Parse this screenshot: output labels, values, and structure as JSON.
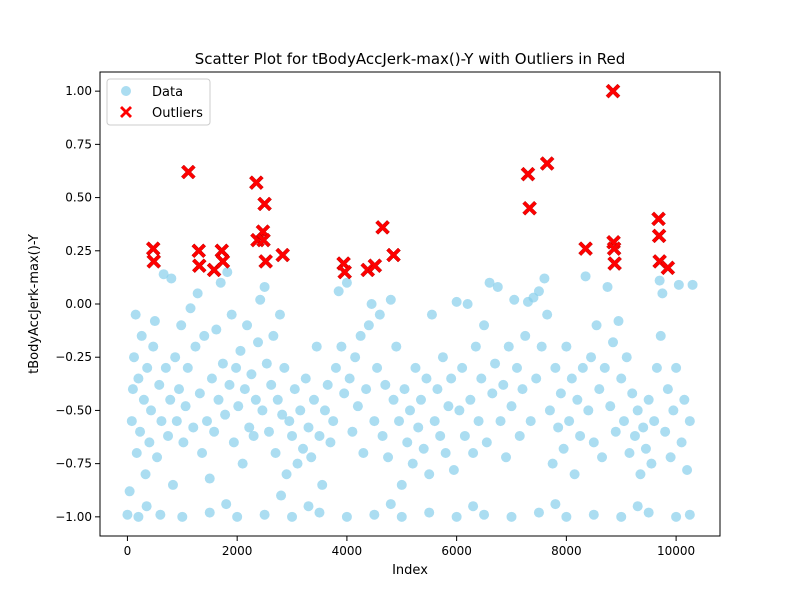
{
  "chart_data": {
    "type": "scatter",
    "title": "Scatter Plot for tBodyAccJerk-max()-Y with Outliers in Red",
    "xlabel": "Index",
    "ylabel": "tBodyAccJerk-max()-Y",
    "xlim": [
      -500,
      10800
    ],
    "ylim": [
      -1.09,
      1.09
    ],
    "x_ticks": [
      0,
      2000,
      4000,
      6000,
      8000,
      10000
    ],
    "y_ticks": [
      -1.0,
      -0.75,
      -0.5,
      -0.25,
      0.0,
      0.25,
      0.5,
      0.75,
      1.0
    ],
    "x_tick_labels": [
      "0",
      "2000",
      "4000",
      "6000",
      "8000",
      "10000"
    ],
    "y_tick_labels": [
      "−1.00",
      "−0.75",
      "−0.50",
      "−0.25",
      "0.00",
      "0.25",
      "0.50",
      "0.75",
      "1.00"
    ],
    "legend": {
      "position": "upper-left",
      "items": [
        {
          "label": "Data",
          "marker": "circle",
          "color": "#87ceeb"
        },
        {
          "label": "Outliers",
          "marker": "x",
          "color": "#ff0000"
        }
      ]
    },
    "series": [
      {
        "name": "Data",
        "marker": "circle",
        "color": "#87ceeb",
        "points": [
          [
            0,
            -0.99
          ],
          [
            40,
            -0.88
          ],
          [
            80,
            -0.55
          ],
          [
            100,
            -0.4
          ],
          [
            120,
            -0.25
          ],
          [
            150,
            -0.05
          ],
          [
            170,
            -0.7
          ],
          [
            200,
            -0.35
          ],
          [
            230,
            -0.6
          ],
          [
            260,
            -0.15
          ],
          [
            300,
            -0.45
          ],
          [
            330,
            -0.8
          ],
          [
            360,
            -0.3
          ],
          [
            400,
            -0.65
          ],
          [
            430,
            -0.5
          ],
          [
            470,
            -0.2
          ],
          [
            500,
            -0.08
          ],
          [
            540,
            -0.72
          ],
          [
            580,
            -0.38
          ],
          [
            620,
            -0.55
          ],
          [
            660,
            0.14
          ],
          [
            700,
            -0.3
          ],
          [
            740,
            -0.62
          ],
          [
            780,
            -0.45
          ],
          [
            800,
            0.12
          ],
          [
            830,
            -0.85
          ],
          [
            870,
            -0.25
          ],
          [
            900,
            -0.55
          ],
          [
            940,
            -0.4
          ],
          [
            980,
            -0.1
          ],
          [
            1020,
            -0.65
          ],
          [
            1060,
            -0.48
          ],
          [
            1100,
            -0.3
          ],
          [
            1150,
            -0.02
          ],
          [
            1200,
            -0.58
          ],
          [
            1240,
            -0.2
          ],
          [
            1280,
            0.05
          ],
          [
            1320,
            -0.42
          ],
          [
            1360,
            -0.7
          ],
          [
            1400,
            -0.15
          ],
          [
            1450,
            -0.55
          ],
          [
            1500,
            -0.82
          ],
          [
            1540,
            -0.35
          ],
          [
            1580,
            -0.6
          ],
          [
            1620,
            -0.12
          ],
          [
            1660,
            -0.45
          ],
          [
            1700,
            0.1
          ],
          [
            1740,
            -0.28
          ],
          [
            1780,
            -0.52
          ],
          [
            1820,
            0.15
          ],
          [
            1860,
            -0.38
          ],
          [
            1900,
            -0.05
          ],
          [
            1940,
            -0.65
          ],
          [
            1980,
            -0.3
          ],
          [
            2020,
            -0.48
          ],
          [
            2060,
            -0.22
          ],
          [
            2100,
            -0.75
          ],
          [
            2140,
            -0.4
          ],
          [
            2180,
            -0.1
          ],
          [
            2220,
            -0.58
          ],
          [
            2260,
            -0.33
          ],
          [
            2300,
            -0.62
          ],
          [
            2340,
            -0.45
          ],
          [
            2380,
            -0.18
          ],
          [
            2420,
            0.02
          ],
          [
            2460,
            -0.5
          ],
          [
            2500,
            0.08
          ],
          [
            2540,
            -0.28
          ],
          [
            2580,
            -0.6
          ],
          [
            2620,
            -0.38
          ],
          [
            2660,
            -0.15
          ],
          [
            2700,
            -0.7
          ],
          [
            2740,
            -0.45
          ],
          [
            2780,
            -0.05
          ],
          [
            2820,
            -0.52
          ],
          [
            2860,
            -0.3
          ],
          [
            2900,
            -0.8
          ],
          [
            2950,
            -0.55
          ],
          [
            3000,
            -0.62
          ],
          [
            3050,
            -0.4
          ],
          [
            3100,
            -0.75
          ],
          [
            3150,
            -0.5
          ],
          [
            3200,
            -0.68
          ],
          [
            3250,
            -0.35
          ],
          [
            3300,
            -0.58
          ],
          [
            3350,
            -0.72
          ],
          [
            3400,
            -0.45
          ],
          [
            3450,
            -0.2
          ],
          [
            3500,
            -0.62
          ],
          [
            3550,
            -0.85
          ],
          [
            3600,
            -0.5
          ],
          [
            3650,
            -0.38
          ],
          [
            3700,
            -0.65
          ],
          [
            3750,
            -0.55
          ],
          [
            3800,
            -0.3
          ],
          [
            3850,
            0.06
          ],
          [
            3900,
            -0.2
          ],
          [
            3950,
            -0.42
          ],
          [
            4000,
            0.1
          ],
          [
            4050,
            -0.35
          ],
          [
            4100,
            -0.6
          ],
          [
            4150,
            -0.25
          ],
          [
            4200,
            -0.48
          ],
          [
            4250,
            -0.15
          ],
          [
            4300,
            -0.7
          ],
          [
            4350,
            -0.4
          ],
          [
            4400,
            -0.1
          ],
          [
            4450,
            0.0
          ],
          [
            4500,
            -0.55
          ],
          [
            4550,
            -0.3
          ],
          [
            4600,
            -0.05
          ],
          [
            4650,
            -0.62
          ],
          [
            4700,
            -0.38
          ],
          [
            4750,
            -0.72
          ],
          [
            4800,
            0.02
          ],
          [
            4850,
            -0.45
          ],
          [
            4900,
            -0.2
          ],
          [
            4950,
            -0.55
          ],
          [
            5000,
            -0.85
          ],
          [
            5050,
            -0.4
          ],
          [
            5100,
            -0.65
          ],
          [
            5150,
            -0.5
          ],
          [
            5200,
            -0.75
          ],
          [
            5250,
            -0.3
          ],
          [
            5300,
            -0.58
          ],
          [
            5350,
            -0.45
          ],
          [
            5400,
            -0.68
          ],
          [
            5450,
            -0.35
          ],
          [
            5500,
            -0.8
          ],
          [
            5550,
            -0.05
          ],
          [
            5600,
            -0.55
          ],
          [
            5650,
            -0.4
          ],
          [
            5700,
            -0.62
          ],
          [
            5750,
            -0.25
          ],
          [
            5800,
            -0.7
          ],
          [
            5850,
            -0.48
          ],
          [
            5900,
            -0.35
          ],
          [
            5950,
            -0.78
          ],
          [
            6000,
            0.01
          ],
          [
            6050,
            -0.5
          ],
          [
            6100,
            -0.3
          ],
          [
            6150,
            -0.62
          ],
          [
            6200,
            0.0
          ],
          [
            6250,
            -0.45
          ],
          [
            6300,
            -0.7
          ],
          [
            6350,
            -0.2
          ],
          [
            6400,
            -0.55
          ],
          [
            6450,
            -0.35
          ],
          [
            6500,
            -0.1
          ],
          [
            6550,
            -0.65
          ],
          [
            6600,
            0.1
          ],
          [
            6650,
            -0.42
          ],
          [
            6700,
            -0.28
          ],
          [
            6750,
            0.08
          ],
          [
            6800,
            -0.55
          ],
          [
            6850,
            -0.38
          ],
          [
            6900,
            -0.72
          ],
          [
            6950,
            -0.2
          ],
          [
            7000,
            -0.48
          ],
          [
            7050,
            0.02
          ],
          [
            7100,
            -0.3
          ],
          [
            7150,
            -0.62
          ],
          [
            7200,
            -0.4
          ],
          [
            7250,
            -0.15
          ],
          [
            7300,
            0.01
          ],
          [
            7350,
            -0.55
          ],
          [
            7400,
            0.03
          ],
          [
            7450,
            -0.35
          ],
          [
            7500,
            0.06
          ],
          [
            7550,
            -0.2
          ],
          [
            7600,
            0.12
          ],
          [
            7650,
            -0.05
          ],
          [
            7700,
            -0.5
          ],
          [
            7750,
            -0.75
          ],
          [
            7800,
            -0.3
          ],
          [
            7850,
            -0.58
          ],
          [
            7900,
            -0.42
          ],
          [
            7950,
            -0.68
          ],
          [
            8000,
            -0.2
          ],
          [
            8050,
            -0.55
          ],
          [
            8100,
            -0.35
          ],
          [
            8150,
            -0.8
          ],
          [
            8200,
            -0.45
          ],
          [
            8250,
            -0.62
          ],
          [
            8300,
            -0.3
          ],
          [
            8350,
            0.13
          ],
          [
            8400,
            -0.5
          ],
          [
            8450,
            -0.25
          ],
          [
            8500,
            -0.65
          ],
          [
            8550,
            -0.1
          ],
          [
            8600,
            -0.4
          ],
          [
            8650,
            -0.72
          ],
          [
            8700,
            -0.3
          ],
          [
            8750,
            0.08
          ],
          [
            8800,
            -0.48
          ],
          [
            8850,
            -0.18
          ],
          [
            8900,
            -0.6
          ],
          [
            8950,
            -0.08
          ],
          [
            9000,
            -0.35
          ],
          [
            9050,
            -0.55
          ],
          [
            9100,
            -0.25
          ],
          [
            9150,
            -0.7
          ],
          [
            9200,
            -0.42
          ],
          [
            9250,
            -0.62
          ],
          [
            9300,
            -0.5
          ],
          [
            9350,
            -0.8
          ],
          [
            9400,
            -0.58
          ],
          [
            9450,
            -0.68
          ],
          [
            9500,
            -0.45
          ],
          [
            9550,
            -0.75
          ],
          [
            9600,
            -0.55
          ],
          [
            9650,
            -0.3
          ],
          [
            9700,
            0.11
          ],
          [
            9720,
            -0.15
          ],
          [
            9750,
            0.05
          ],
          [
            9800,
            -0.6
          ],
          [
            9850,
            -0.4
          ],
          [
            9900,
            -0.72
          ],
          [
            9950,
            -0.5
          ],
          [
            10000,
            -0.3
          ],
          [
            10050,
            0.09
          ],
          [
            10100,
            -0.65
          ],
          [
            10150,
            -0.45
          ],
          [
            10200,
            -0.78
          ],
          [
            10250,
            -0.55
          ],
          [
            10300,
            0.09
          ],
          [
            200,
            -1.0
          ],
          [
            600,
            -0.99
          ],
          [
            1000,
            -1.0
          ],
          [
            1500,
            -0.98
          ],
          [
            2000,
            -1.0
          ],
          [
            2500,
            -0.99
          ],
          [
            3000,
            -1.0
          ],
          [
            3500,
            -0.98
          ],
          [
            4000,
            -1.0
          ],
          [
            4500,
            -0.99
          ],
          [
            5000,
            -1.0
          ],
          [
            5500,
            -0.98
          ],
          [
            6000,
            -1.0
          ],
          [
            6500,
            -0.99
          ],
          [
            7000,
            -1.0
          ],
          [
            7500,
            -0.98
          ],
          [
            8000,
            -1.0
          ],
          [
            8500,
            -0.99
          ],
          [
            9000,
            -1.0
          ],
          [
            9500,
            -0.98
          ],
          [
            10000,
            -1.0
          ],
          [
            10250,
            -0.99
          ],
          [
            350,
            -0.95
          ],
          [
            1800,
            -0.94
          ],
          [
            3300,
            -0.95
          ],
          [
            4800,
            -0.94
          ],
          [
            6300,
            -0.95
          ],
          [
            7800,
            -0.94
          ],
          [
            9300,
            -0.95
          ],
          [
            2800,
            -0.9
          ]
        ]
      },
      {
        "name": "Outliers",
        "marker": "x",
        "color": "#ff0000",
        "points": [
          [
            470,
            0.26
          ],
          [
            480,
            0.2
          ],
          [
            1110,
            0.62
          ],
          [
            1300,
            0.25
          ],
          [
            1310,
            0.18
          ],
          [
            1580,
            0.16
          ],
          [
            1720,
            0.25
          ],
          [
            1740,
            0.2
          ],
          [
            2350,
            0.57
          ],
          [
            2370,
            0.3
          ],
          [
            2470,
            0.34
          ],
          [
            2480,
            0.3
          ],
          [
            2500,
            0.47
          ],
          [
            2520,
            0.2
          ],
          [
            2830,
            0.23
          ],
          [
            3940,
            0.19
          ],
          [
            3960,
            0.15
          ],
          [
            4380,
            0.16
          ],
          [
            4510,
            0.18
          ],
          [
            4650,
            0.36
          ],
          [
            4850,
            0.23
          ],
          [
            7300,
            0.61
          ],
          [
            7330,
            0.45
          ],
          [
            7650,
            0.66
          ],
          [
            8350,
            0.26
          ],
          [
            8850,
            1.0
          ],
          [
            8860,
            0.29
          ],
          [
            8870,
            0.26
          ],
          [
            8880,
            0.19
          ],
          [
            9680,
            0.4
          ],
          [
            9690,
            0.32
          ],
          [
            9700,
            0.2
          ],
          [
            9850,
            0.17
          ]
        ]
      }
    ]
  }
}
